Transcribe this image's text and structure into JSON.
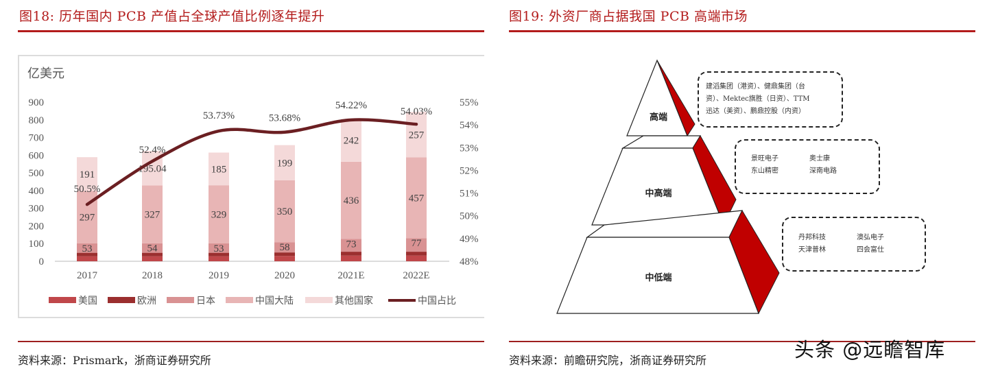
{
  "figure18": {
    "title": "图18:  历年国内 PCB 产值占全球产值比例逐年提升",
    "source": "资料来源：Prismark，浙商证券研究所",
    "unit_label": "亿美元"
  },
  "figure19": {
    "title": "图19:  外资厂商占据我国 PCB 高端市场",
    "source": "资料来源：前瞻研究院，浙商证券研究所",
    "tiers": [
      {
        "label": "高端",
        "companies": [
          "建滔集团（港资）、健鼎集团（台",
          "资）、Mektec旗胜（日资）、TTM",
          "迅达（美资）、鹏鼎控股（内资）"
        ]
      },
      {
        "label": "中高端",
        "companies": [
          "景旺电子",
          "奥士康",
          "东山精密",
          "深南电路"
        ]
      },
      {
        "label": "中低端",
        "companies": [
          "丹邦科技",
          "澳弘电子",
          "天津普林",
          "四会富仕"
        ]
      }
    ]
  },
  "watermark": "头条 @远瞻智库",
  "colors": {
    "accent": "#b31b1b",
    "us": "#c0474a",
    "europe": "#9b2f2f",
    "japan": "#d99293",
    "china": "#e8b5b5",
    "others": "#f4d9d9",
    "line": "#6b1f22",
    "pyramid_side": "#c00000"
  },
  "chart_data": {
    "type": "bar",
    "subtype": "stacked bar + line (secondary axis)",
    "title": "历年国内 PCB 产值占全球产值比例逐年提升",
    "ylabel": "亿美元",
    "xlabel": "",
    "categories": [
      "2017",
      "2018",
      "2019",
      "2020",
      "2021E",
      "2022E"
    ],
    "ylim": [
      0,
      900
    ],
    "yticks": [
      "0",
      "100",
      "200",
      "300",
      "400",
      "500",
      "600",
      "700",
      "800",
      "900"
    ],
    "y2lim": [
      0.48,
      0.55
    ],
    "y2ticks": [
      "48%",
      "49%",
      "50%",
      "51%",
      "52%",
      "53%",
      "54%",
      "55%"
    ],
    "series": [
      {
        "name": "美国",
        "values": [
          28,
          28,
          28,
          30,
          32,
          32
        ],
        "labeled": false
      },
      {
        "name": "欧洲",
        "values": [
          20,
          20,
          20,
          20,
          22,
          22
        ],
        "labeled": false
      },
      {
        "name": "日本",
        "values": [
          53,
          54,
          53,
          58,
          73,
          77
        ]
      },
      {
        "name": "中国大陆",
        "values": [
          297,
          327,
          329,
          350,
          436,
          457
        ]
      },
      {
        "name": "其他国家",
        "values": [
          191,
          195.04,
          185,
          199,
          242,
          257
        ]
      },
      {
        "name": "中国占比",
        "type": "line",
        "axis": "secondary",
        "values": [
          50.5,
          52.4,
          53.73,
          53.68,
          54.22,
          54.03
        ],
        "labels": [
          "50.5%",
          "52.4%",
          "53.73%",
          "53.68%",
          "54.22%",
          "54.03%"
        ]
      }
    ],
    "legend": [
      "美国",
      "欧洲",
      "日本",
      "中国大陆",
      "其他国家",
      "中国占比"
    ],
    "legend_position": "bottom",
    "grid": false
  }
}
